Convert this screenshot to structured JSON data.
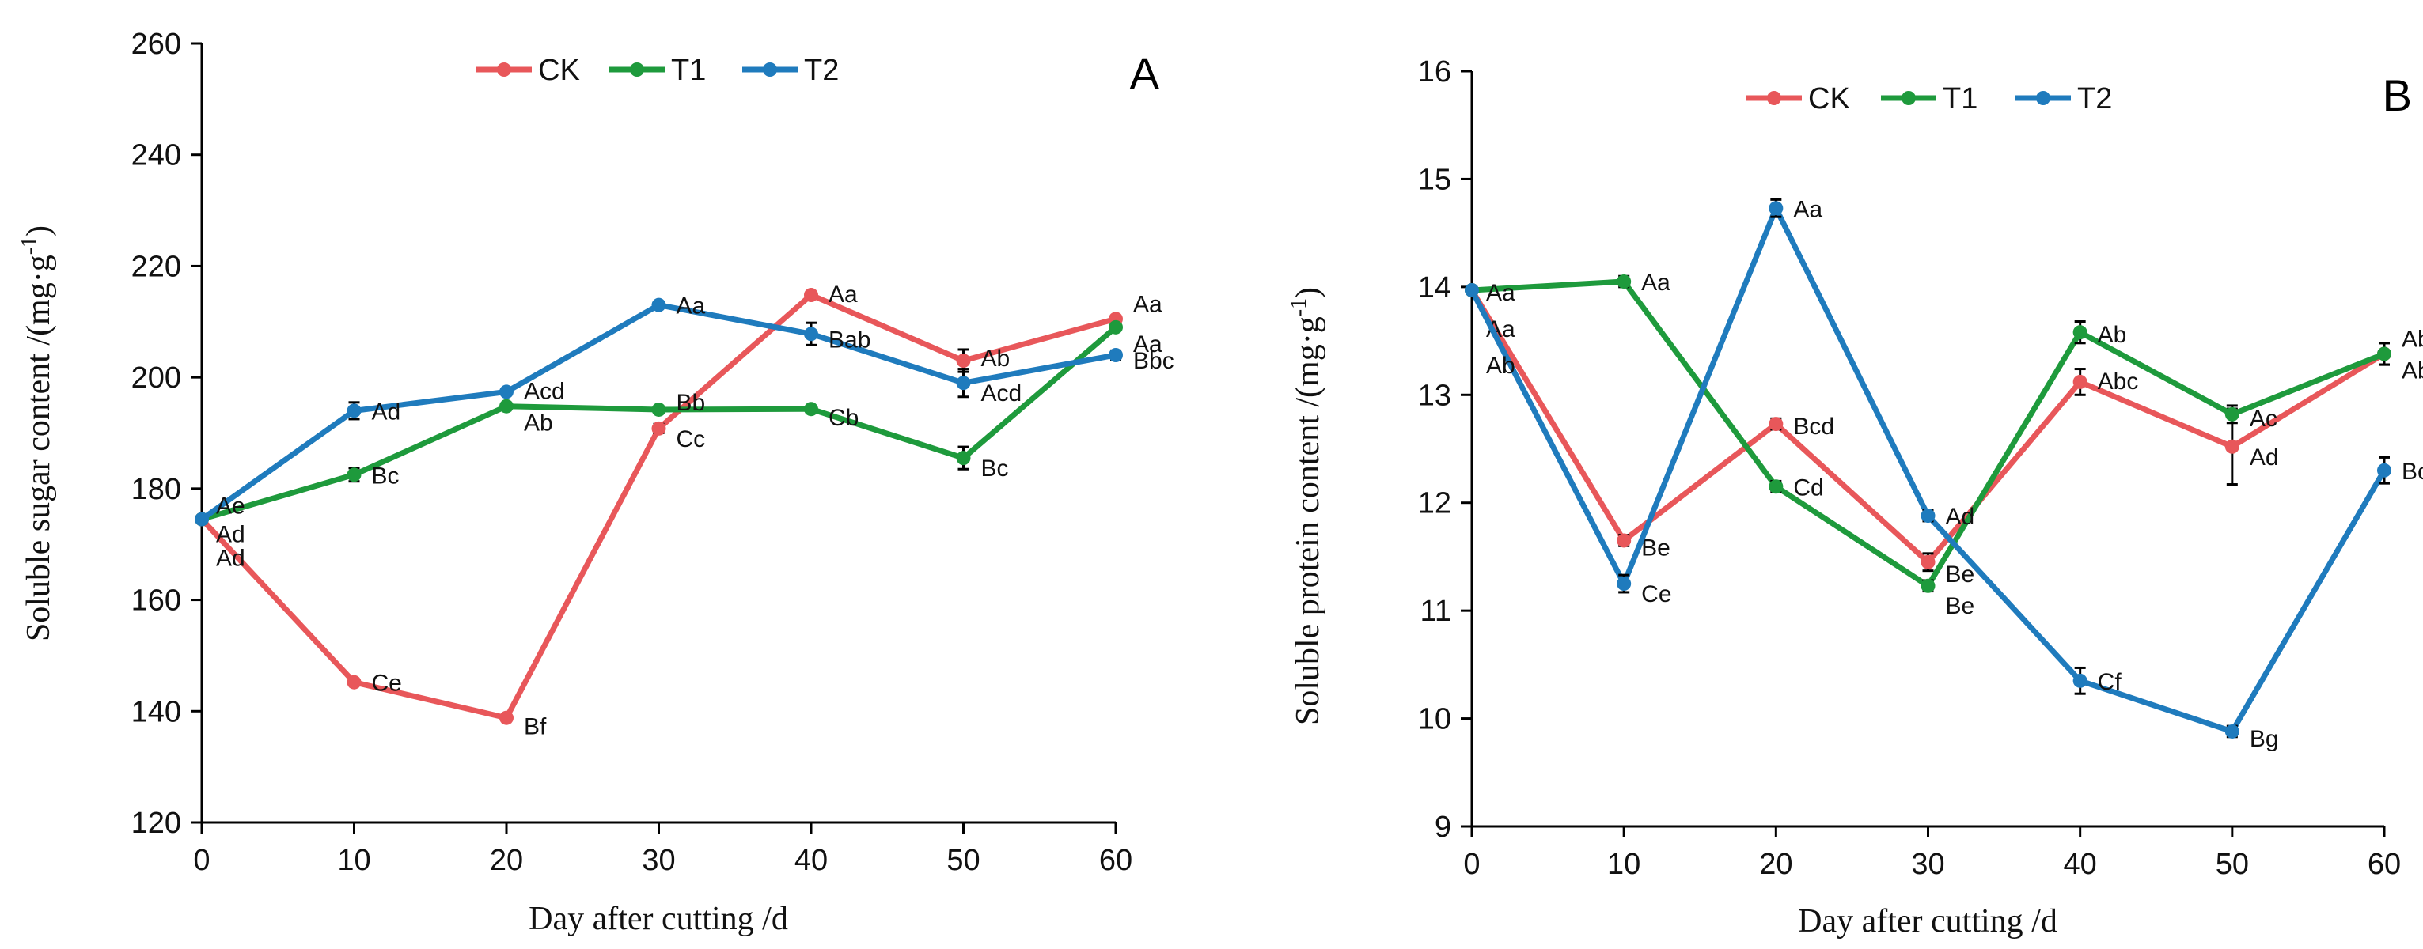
{
  "chart_data": [
    {
      "type": "line",
      "panel": "A",
      "title": "",
      "xlabel": "Day after cutting /d",
      "ylabel_main": "Soluble sugar content /(mg·g",
      "ylabel_sup": "-1",
      "ylabel_close": ")",
      "x": [
        0,
        10,
        20,
        30,
        40,
        50,
        60
      ],
      "xlim": [
        0,
        60
      ],
      "ylim": [
        120,
        260
      ],
      "yticks": [
        120,
        140,
        160,
        180,
        200,
        220,
        240,
        260
      ],
      "xticks": [
        0,
        10,
        20,
        30,
        40,
        50,
        60
      ],
      "grid": false,
      "legend_position": "top-center",
      "series": [
        {
          "name": "CK",
          "color": "#e8575a",
          "values": [
            174.5,
            145.2,
            138.8,
            190.8,
            214.8,
            203.0,
            210.5
          ],
          "errors": [
            0,
            0.5,
            0.5,
            0.8,
            0.5,
            2.0,
            0.5
          ],
          "labels": [
            "Ad",
            "Ce",
            "Bf",
            "Cc",
            "Aa",
            "Ab",
            "Aa"
          ]
        },
        {
          "name": "T1",
          "color": "#1e9a3c",
          "values": [
            174.5,
            182.5,
            194.8,
            194.2,
            194.3,
            185.5,
            209.0
          ],
          "errors": [
            0,
            1.2,
            0.5,
            0.5,
            0.5,
            2.0,
            0.5
          ],
          "labels": [
            "Ad",
            "Bc",
            "Ab",
            "Bb",
            "Cb",
            "Bc",
            "Aa"
          ]
        },
        {
          "name": "T2",
          "color": "#1f7bbd",
          "values": [
            174.5,
            194.0,
            197.4,
            213.0,
            207.8,
            199.0,
            204.0
          ],
          "errors": [
            0,
            1.5,
            0.5,
            0.5,
            2.0,
            2.5,
            0.8
          ],
          "labels": [
            "Ae",
            "Ad",
            "Acd",
            "Aa",
            "Bab",
            "Acd",
            "Bbc"
          ]
        }
      ]
    },
    {
      "type": "line",
      "panel": "B",
      "title": "",
      "xlabel": "Day after cutting /d",
      "ylabel_main": "Soluble protein content /(mg·g",
      "ylabel_sup": "-1",
      "ylabel_close": ")",
      "x": [
        0,
        10,
        20,
        30,
        40,
        50,
        60
      ],
      "xlim": [
        0,
        60
      ],
      "ylim": [
        9,
        16
      ],
      "yticks": [
        9,
        10,
        11,
        12,
        13,
        14,
        15,
        16
      ],
      "xticks": [
        0,
        10,
        20,
        30,
        40,
        50,
        60
      ],
      "grid": false,
      "legend_position": "top-center",
      "series": [
        {
          "name": "CK",
          "color": "#e8575a",
          "values": [
            13.97,
            11.65,
            12.73,
            11.45,
            13.12,
            12.52,
            13.38
          ],
          "errors": [
            0,
            0.05,
            0.05,
            0.08,
            0.12,
            0.35,
            0.1
          ],
          "labels": [
            "Aa",
            "Be",
            "Bcd",
            "Be",
            "Abc",
            "Ad",
            "Ab"
          ]
        },
        {
          "name": "T1",
          "color": "#1e9a3c",
          "values": [
            13.97,
            14.05,
            12.15,
            11.23,
            13.58,
            12.82,
            13.38
          ],
          "errors": [
            0,
            0.05,
            0.05,
            0.05,
            0.1,
            0.08,
            0.1
          ],
          "labels": [
            "Aa",
            "Aa",
            "Cd",
            "Be",
            "Ab",
            "Ac",
            "Ab"
          ]
        },
        {
          "name": "T2",
          "color": "#1f7bbd",
          "values": [
            13.97,
            11.25,
            14.73,
            11.88,
            10.35,
            9.88,
            12.3
          ],
          "errors": [
            0,
            0.08,
            0.08,
            0.05,
            0.12,
            0.05,
            0.12
          ],
          "labels": [
            "Ab",
            "Ce",
            "Aa",
            "Ad",
            "Cf",
            "Bg",
            "Bc"
          ]
        }
      ]
    }
  ]
}
